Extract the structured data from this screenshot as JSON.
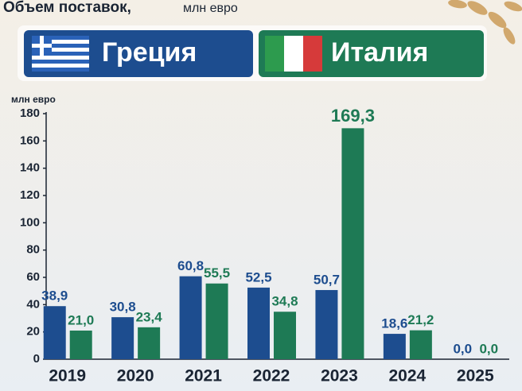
{
  "chart_data": {
    "type": "bar",
    "title": "Объем поставок,",
    "subtitle": "млн евро",
    "y_label": "млн евро",
    "categories": [
      "2019",
      "2020",
      "2021",
      "2022",
      "2023",
      "2024",
      "2025"
    ],
    "series": [
      {
        "name": "Греция",
        "color": "#1d4d8f",
        "values": [
          38.9,
          30.8,
          60.8,
          52.5,
          50.7,
          18.6,
          0.0
        ],
        "value_labels": [
          "38,9",
          "30,8",
          "60,8",
          "52,5",
          "50,7",
          "18,6",
          "0,0"
        ]
      },
      {
        "name": "Италия",
        "color": "#1e7a55",
        "values": [
          21.0,
          23.4,
          55.5,
          34.8,
          169.3,
          21.2,
          0.0
        ],
        "value_labels": [
          "21,0",
          "23,4",
          "55,5",
          "34,8",
          "169,3",
          "21,2",
          "0,0"
        ]
      }
    ],
    "ylim": [
      0,
      180
    ],
    "yticks": [
      0,
      20,
      40,
      60,
      80,
      100,
      120,
      140,
      160,
      180
    ],
    "grid": false
  }
}
